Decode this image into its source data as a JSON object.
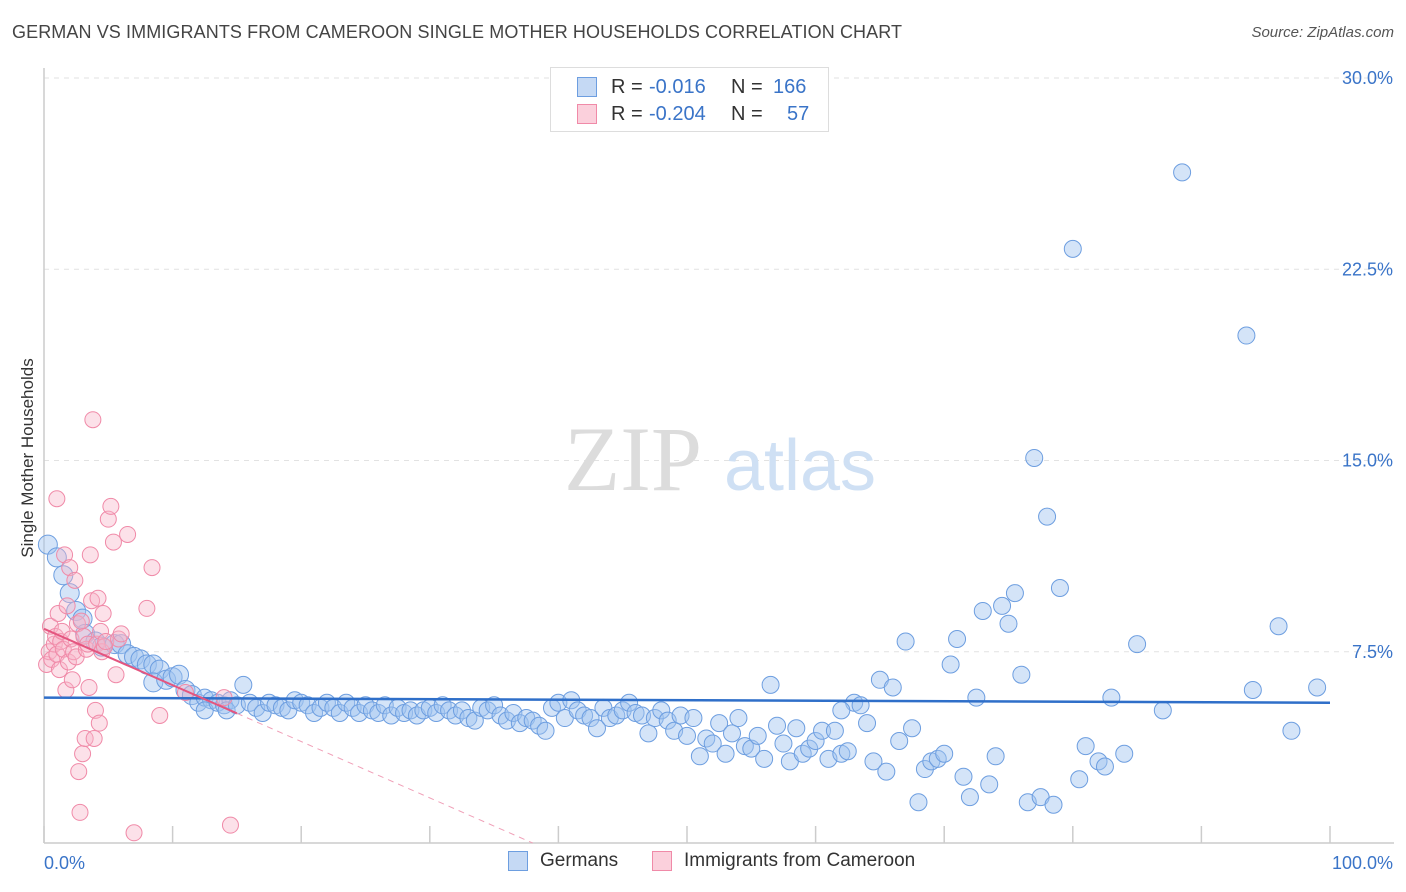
{
  "title": "GERMAN VS IMMIGRANTS FROM CAMEROON SINGLE MOTHER HOUSEHOLDS CORRELATION CHART",
  "source": "Source: ZipAtlas.com",
  "watermark": {
    "zip": "ZIP",
    "atlas": "atlas"
  },
  "legend": {
    "r_label": "R =",
    "n_label": "N =",
    "rows": [
      {
        "r": "-0.016",
        "n": "166",
        "color": "#6d9ee0"
      },
      {
        "r": "-0.204",
        "n": "57",
        "color": "#f08aa8"
      }
    ]
  },
  "chart_data": {
    "type": "scatter",
    "title": "GERMAN VS IMMIGRANTS FROM CAMEROON SINGLE MOTHER HOUSEHOLDS CORRELATION CHART",
    "xlabel": "",
    "ylabel": "Single Mother Households",
    "xlim": [
      0,
      100
    ],
    "ylim": [
      0,
      30
    ],
    "x_tick_labels": [
      "0.0%",
      "100.0%"
    ],
    "y_ticks": [
      7.5,
      15.0,
      22.5,
      30.0
    ],
    "y_tick_labels": [
      "7.5%",
      "15.0%",
      "22.5%",
      "30.0%"
    ],
    "grid": true,
    "legend_position": "top-center",
    "series": [
      {
        "name": "Germans",
        "color": "#6d9ee0",
        "trend": {
          "x": [
            0,
            100
          ],
          "y": [
            5.7,
            5.5
          ],
          "style": "solid"
        },
        "points": [
          [
            0.3,
            11.7
          ],
          [
            1,
            11.2
          ],
          [
            1.5,
            10.5
          ],
          [
            2,
            9.8
          ],
          [
            2.5,
            9.1
          ],
          [
            3,
            8.8
          ],
          [
            3.2,
            8.2
          ],
          [
            4,
            7.9
          ],
          [
            4.5,
            7.7
          ],
          [
            5.5,
            7.8
          ],
          [
            6,
            7.8
          ],
          [
            6.5,
            7.4
          ],
          [
            7,
            7.3
          ],
          [
            7.5,
            7.2
          ],
          [
            8,
            7.0
          ],
          [
            8.5,
            7.0
          ],
          [
            9,
            6.8
          ],
          [
            8.5,
            6.3
          ],
          [
            9.5,
            6.4
          ],
          [
            10,
            6.5
          ],
          [
            10.5,
            6.6
          ],
          [
            11,
            6.0
          ],
          [
            11.5,
            5.8
          ],
          [
            12,
            5.5
          ],
          [
            12.5,
            5.7
          ],
          [
            13,
            5.6
          ],
          [
            12.5,
            5.2
          ],
          [
            13.5,
            5.5
          ],
          [
            14,
            5.4
          ],
          [
            14.5,
            5.6
          ],
          [
            14.2,
            5.2
          ],
          [
            15,
            5.4
          ],
          [
            15.5,
            6.2
          ],
          [
            16,
            5.5
          ],
          [
            16.5,
            5.3
          ],
          [
            17,
            5.1
          ],
          [
            17.5,
            5.5
          ],
          [
            18,
            5.4
          ],
          [
            18.5,
            5.3
          ],
          [
            19,
            5.2
          ],
          [
            19.5,
            5.6
          ],
          [
            20,
            5.5
          ],
          [
            20.5,
            5.4
          ],
          [
            21,
            5.1
          ],
          [
            21.5,
            5.3
          ],
          [
            22,
            5.5
          ],
          [
            22.5,
            5.3
          ],
          [
            23,
            5.1
          ],
          [
            23.5,
            5.5
          ],
          [
            24,
            5.3
          ],
          [
            24.5,
            5.1
          ],
          [
            25,
            5.4
          ],
          [
            25.5,
            5.2
          ],
          [
            26,
            5.1
          ],
          [
            26.5,
            5.4
          ],
          [
            27,
            5.0
          ],
          [
            27.5,
            5.3
          ],
          [
            28,
            5.1
          ],
          [
            28.5,
            5.2
          ],
          [
            29,
            5.0
          ],
          [
            29.5,
            5.2
          ],
          [
            30,
            5.3
          ],
          [
            30.5,
            5.1
          ],
          [
            31,
            5.4
          ],
          [
            31.5,
            5.2
          ],
          [
            32,
            5.0
          ],
          [
            32.5,
            5.2
          ],
          [
            33,
            4.9
          ],
          [
            33.5,
            4.8
          ],
          [
            34,
            5.3
          ],
          [
            34.5,
            5.2
          ],
          [
            35,
            5.4
          ],
          [
            35.5,
            5.0
          ],
          [
            36,
            4.8
          ],
          [
            36.5,
            5.1
          ],
          [
            37,
            4.7
          ],
          [
            37.5,
            4.9
          ],
          [
            38,
            4.8
          ],
          [
            38.5,
            4.6
          ],
          [
            39,
            4.4
          ],
          [
            39.5,
            5.3
          ],
          [
            40,
            5.5
          ],
          [
            40.5,
            4.9
          ],
          [
            41,
            5.6
          ],
          [
            41.5,
            5.2
          ],
          [
            42,
            5.0
          ],
          [
            42.5,
            4.9
          ],
          [
            43,
            4.5
          ],
          [
            43.5,
            5.3
          ],
          [
            44,
            4.9
          ],
          [
            44.5,
            5.0
          ],
          [
            45,
            5.2
          ],
          [
            45.5,
            5.5
          ],
          [
            46,
            5.1
          ],
          [
            46.5,
            5.0
          ],
          [
            47,
            4.3
          ],
          [
            47.5,
            4.9
          ],
          [
            48,
            5.2
          ],
          [
            48.5,
            4.8
          ],
          [
            49,
            4.4
          ],
          [
            49.5,
            5.0
          ],
          [
            50,
            4.2
          ],
          [
            50.5,
            4.9
          ],
          [
            51,
            3.4
          ],
          [
            51.5,
            4.1
          ],
          [
            52,
            3.9
          ],
          [
            52.5,
            4.7
          ],
          [
            53,
            3.5
          ],
          [
            53.5,
            4.3
          ],
          [
            54,
            4.9
          ],
          [
            54.5,
            3.8
          ],
          [
            55,
            3.7
          ],
          [
            55.5,
            4.2
          ],
          [
            56,
            3.3
          ],
          [
            56.5,
            6.2
          ],
          [
            57,
            4.6
          ],
          [
            57.5,
            3.9
          ],
          [
            58,
            3.2
          ],
          [
            58.5,
            4.5
          ],
          [
            59,
            3.5
          ],
          [
            59.5,
            3.7
          ],
          [
            60,
            4.0
          ],
          [
            60.5,
            4.4
          ],
          [
            61,
            3.3
          ],
          [
            61.5,
            4.4
          ],
          [
            62,
            3.5
          ],
          [
            62.5,
            3.6
          ],
          [
            63,
            5.5
          ],
          [
            63.5,
            5.4
          ],
          [
            64,
            4.7
          ],
          [
            64.5,
            3.2
          ],
          [
            65,
            6.4
          ],
          [
            65.5,
            2.8
          ],
          [
            66,
            6.1
          ],
          [
            66.5,
            4.0
          ],
          [
            67,
            7.9
          ],
          [
            67.5,
            4.5
          ],
          [
            68,
            1.6
          ],
          [
            68.5,
            2.9
          ],
          [
            69,
            3.2
          ],
          [
            69.5,
            3.3
          ],
          [
            70,
            3.5
          ],
          [
            70.5,
            7.0
          ],
          [
            71,
            8.0
          ],
          [
            71.5,
            2.6
          ],
          [
            72,
            1.8
          ],
          [
            72.5,
            5.7
          ],
          [
            73,
            9.1
          ],
          [
            73.5,
            2.3
          ],
          [
            74,
            3.4
          ],
          [
            74.5,
            9.3
          ],
          [
            75,
            8.6
          ],
          [
            75.5,
            9.8
          ],
          [
            76,
            6.6
          ],
          [
            76.5,
            1.6
          ],
          [
            77,
            15.1
          ],
          [
            77.5,
            1.8
          ],
          [
            78,
            12.8
          ],
          [
            78.5,
            1.5
          ],
          [
            79,
            10.0
          ],
          [
            80,
            23.3
          ],
          [
            80.5,
            2.5
          ],
          [
            81,
            3.8
          ],
          [
            82,
            3.2
          ],
          [
            82.5,
            3.0
          ],
          [
            83,
            5.7
          ],
          [
            84,
            3.5
          ],
          [
            85,
            7.8
          ],
          [
            87,
            5.2
          ],
          [
            88.5,
            26.3
          ],
          [
            93.5,
            19.9
          ],
          [
            94,
            6.0
          ],
          [
            96,
            8.5
          ],
          [
            97,
            4.4
          ],
          [
            99,
            6.1
          ],
          [
            62,
            5.2
          ]
        ]
      },
      {
        "name": "Immigrants from Cameroon",
        "color": "#f08aa8",
        "trend": {
          "x": [
            0,
            38
          ],
          "y": [
            8.4,
            0.0
          ],
          "style": "solid-then-dashed"
        },
        "points": [
          [
            0.2,
            7.0
          ],
          [
            0.4,
            7.5
          ],
          [
            0.5,
            8.5
          ],
          [
            0.6,
            7.2
          ],
          [
            0.8,
            7.8
          ],
          [
            0.9,
            8.1
          ],
          [
            1,
            7.4
          ],
          [
            1.1,
            9.0
          ],
          [
            1.2,
            6.8
          ],
          [
            1.3,
            7.9
          ],
          [
            1.4,
            8.3
          ],
          [
            1.5,
            7.6
          ],
          [
            1.6,
            11.3
          ],
          [
            1.7,
            6.0
          ],
          [
            1.8,
            9.3
          ],
          [
            1.9,
            7.1
          ],
          [
            2,
            10.8
          ],
          [
            2.1,
            8.0
          ],
          [
            2.2,
            6.4
          ],
          [
            2.3,
            7.5
          ],
          [
            2.4,
            10.3
          ],
          [
            2.5,
            7.3
          ],
          [
            2.6,
            8.6
          ],
          [
            2.7,
            2.8
          ],
          [
            2.8,
            1.2
          ],
          [
            2.9,
            8.7
          ],
          [
            3,
            3.5
          ],
          [
            3.1,
            8.1
          ],
          [
            3.2,
            4.1
          ],
          [
            3.3,
            7.6
          ],
          [
            3.4,
            7.8
          ],
          [
            3.5,
            6.1
          ],
          [
            3.6,
            11.3
          ],
          [
            3.7,
            9.5
          ],
          [
            3.8,
            16.6
          ],
          [
            3.9,
            4.1
          ],
          [
            4,
            5.2
          ],
          [
            4.1,
            7.8
          ],
          [
            4.2,
            9.6
          ],
          [
            4.3,
            4.7
          ],
          [
            4.4,
            8.3
          ],
          [
            4.5,
            7.5
          ],
          [
            4.6,
            9.0
          ],
          [
            4.7,
            7.7
          ],
          [
            4.8,
            7.9
          ],
          [
            5,
            12.7
          ],
          [
            5.2,
            13.2
          ],
          [
            5.4,
            11.8
          ],
          [
            5.6,
            6.6
          ],
          [
            5.8,
            8.0
          ],
          [
            6,
            8.2
          ],
          [
            6.5,
            12.1
          ],
          [
            7,
            0.4
          ],
          [
            8,
            9.2
          ],
          [
            8.4,
            10.8
          ],
          [
            9,
            5.0
          ],
          [
            11,
            5.9
          ],
          [
            14.5,
            0.7
          ],
          [
            14,
            5.7
          ],
          [
            1,
            13.5
          ]
        ]
      }
    ]
  },
  "bottom_legend": [
    "Germans",
    "Immigrants from Cameroon"
  ]
}
